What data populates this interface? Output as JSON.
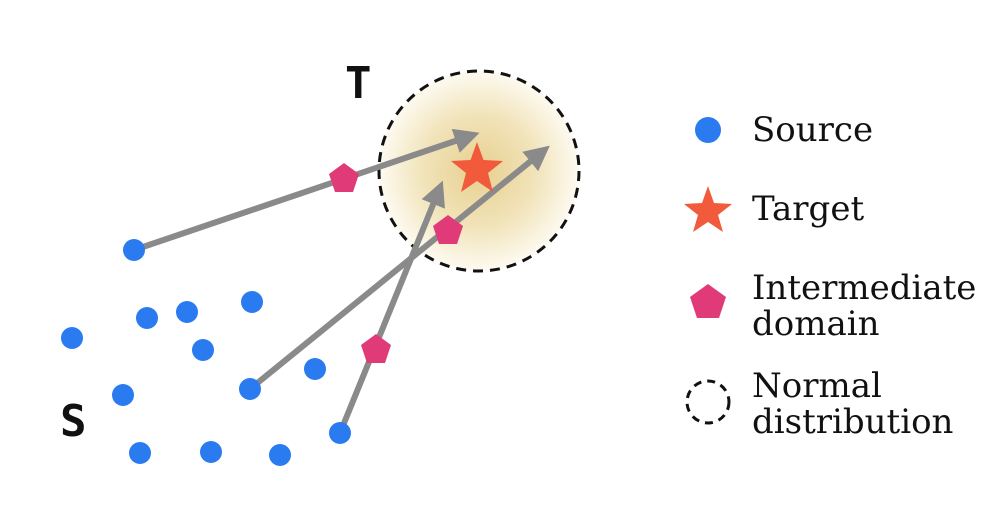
{
  "labels": {
    "target_set": "T",
    "source_set": "S"
  },
  "legend": {
    "source": "Source",
    "target": "Target",
    "intermediate_line1": "Intermediate",
    "intermediate_line2": "domain",
    "normal_line1": "Normal",
    "normal_line2": "distribution"
  },
  "colors": {
    "source": "#2b7bf0",
    "target": "#f15a3a",
    "intermediate": "#e03a78",
    "arrow": "#8a8a8a",
    "distribution_center": "#e9d39a",
    "distribution_edge": "#fbf7ea",
    "distribution_border": "#111111"
  },
  "icons": {
    "source": "filled-circle",
    "target": "star",
    "intermediate": "pentagon",
    "normal": "dashed-circle"
  }
}
